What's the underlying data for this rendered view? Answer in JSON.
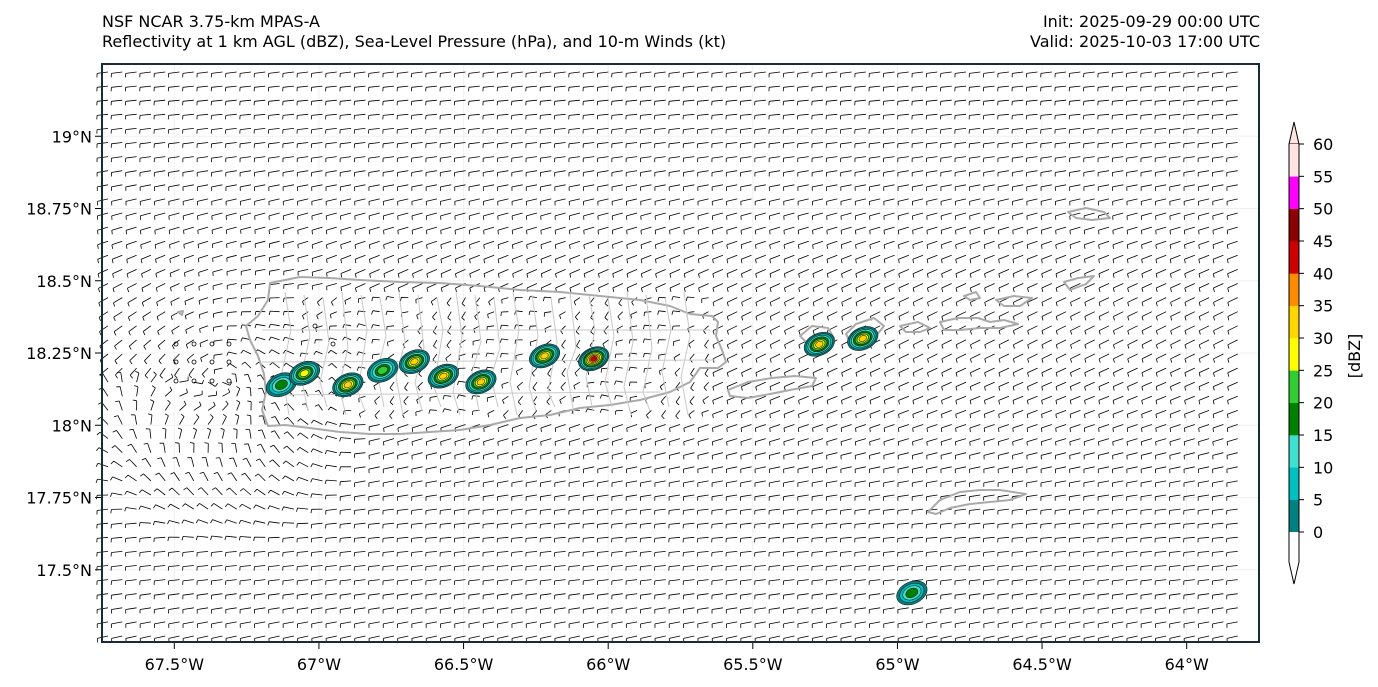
{
  "title_left": {
    "line1": "NSF NCAR 3.75-km MPAS-A",
    "line2": "Reflectivity at 1 km AGL (dBZ), Sea-Level Pressure (hPa), and 10-m Winds (kt)"
  },
  "title_right": {
    "line1": "Init: 2025-09-29 00:00 UTC",
    "line2": "Valid: 2025-10-03 17:00 UTC"
  },
  "map": {
    "lon_range": [
      -67.75,
      -63.75
    ],
    "lat_range": [
      17.25,
      19.25
    ],
    "lon_ticks": [
      {
        "value": -67.5,
        "label": "67.5°W"
      },
      {
        "value": -67.0,
        "label": "67°W"
      },
      {
        "value": -66.5,
        "label": "66.5°W"
      },
      {
        "value": -66.0,
        "label": "66°W"
      },
      {
        "value": -65.5,
        "label": "65.5°W"
      },
      {
        "value": -65.0,
        "label": "65°W"
      },
      {
        "value": -64.5,
        "label": "64.5°W"
      },
      {
        "value": -64.0,
        "label": "64°W"
      }
    ],
    "lat_ticks": [
      {
        "value": 19.0,
        "label": "19°N"
      },
      {
        "value": 18.75,
        "label": "18.75°N"
      },
      {
        "value": 18.5,
        "label": "18.5°N"
      },
      {
        "value": 18.25,
        "label": "18.25°N"
      },
      {
        "value": 18.0,
        "label": "18°N"
      },
      {
        "value": 17.75,
        "label": "17.75°N"
      },
      {
        "value": 17.5,
        "label": "17.5°N"
      }
    ],
    "coastline_color": "#aaaaaa",
    "barb_color": "#000000",
    "echoes": [
      {
        "lon": -67.13,
        "lat": 18.14,
        "max_dbz": 15
      },
      {
        "lon": -67.05,
        "lat": 18.18,
        "max_dbz": 25
      },
      {
        "lon": -66.9,
        "lat": 18.14,
        "max_dbz": 30
      },
      {
        "lon": -66.78,
        "lat": 18.19,
        "max_dbz": 20
      },
      {
        "lon": -66.67,
        "lat": 18.22,
        "max_dbz": 30
      },
      {
        "lon": -66.57,
        "lat": 18.17,
        "max_dbz": 30
      },
      {
        "lon": -66.44,
        "lat": 18.15,
        "max_dbz": 30
      },
      {
        "lon": -66.22,
        "lat": 18.24,
        "max_dbz": 30
      },
      {
        "lon": -66.05,
        "lat": 18.23,
        "max_dbz": 40
      },
      {
        "lon": -65.27,
        "lat": 18.28,
        "max_dbz": 30
      },
      {
        "lon": -65.12,
        "lat": 18.3,
        "max_dbz": 30
      },
      {
        "lon": -64.95,
        "lat": 17.42,
        "max_dbz": 15
      }
    ]
  },
  "colorbar": {
    "label": "[dBZ]",
    "ticks": [
      "0",
      "5",
      "10",
      "15",
      "20",
      "25",
      "30",
      "35",
      "40",
      "45",
      "50",
      "55",
      "60"
    ],
    "colors": [
      "#008080",
      "#00c0c0",
      "#40e0d0",
      "#008000",
      "#32cd32",
      "#ffff00",
      "#ffd700",
      "#ff8c00",
      "#cc0000",
      "#8b0000",
      "#ff00ff",
      "#ffe4e1"
    ],
    "under_color": "#ffffff",
    "over_color": "#ffe4e1"
  }
}
